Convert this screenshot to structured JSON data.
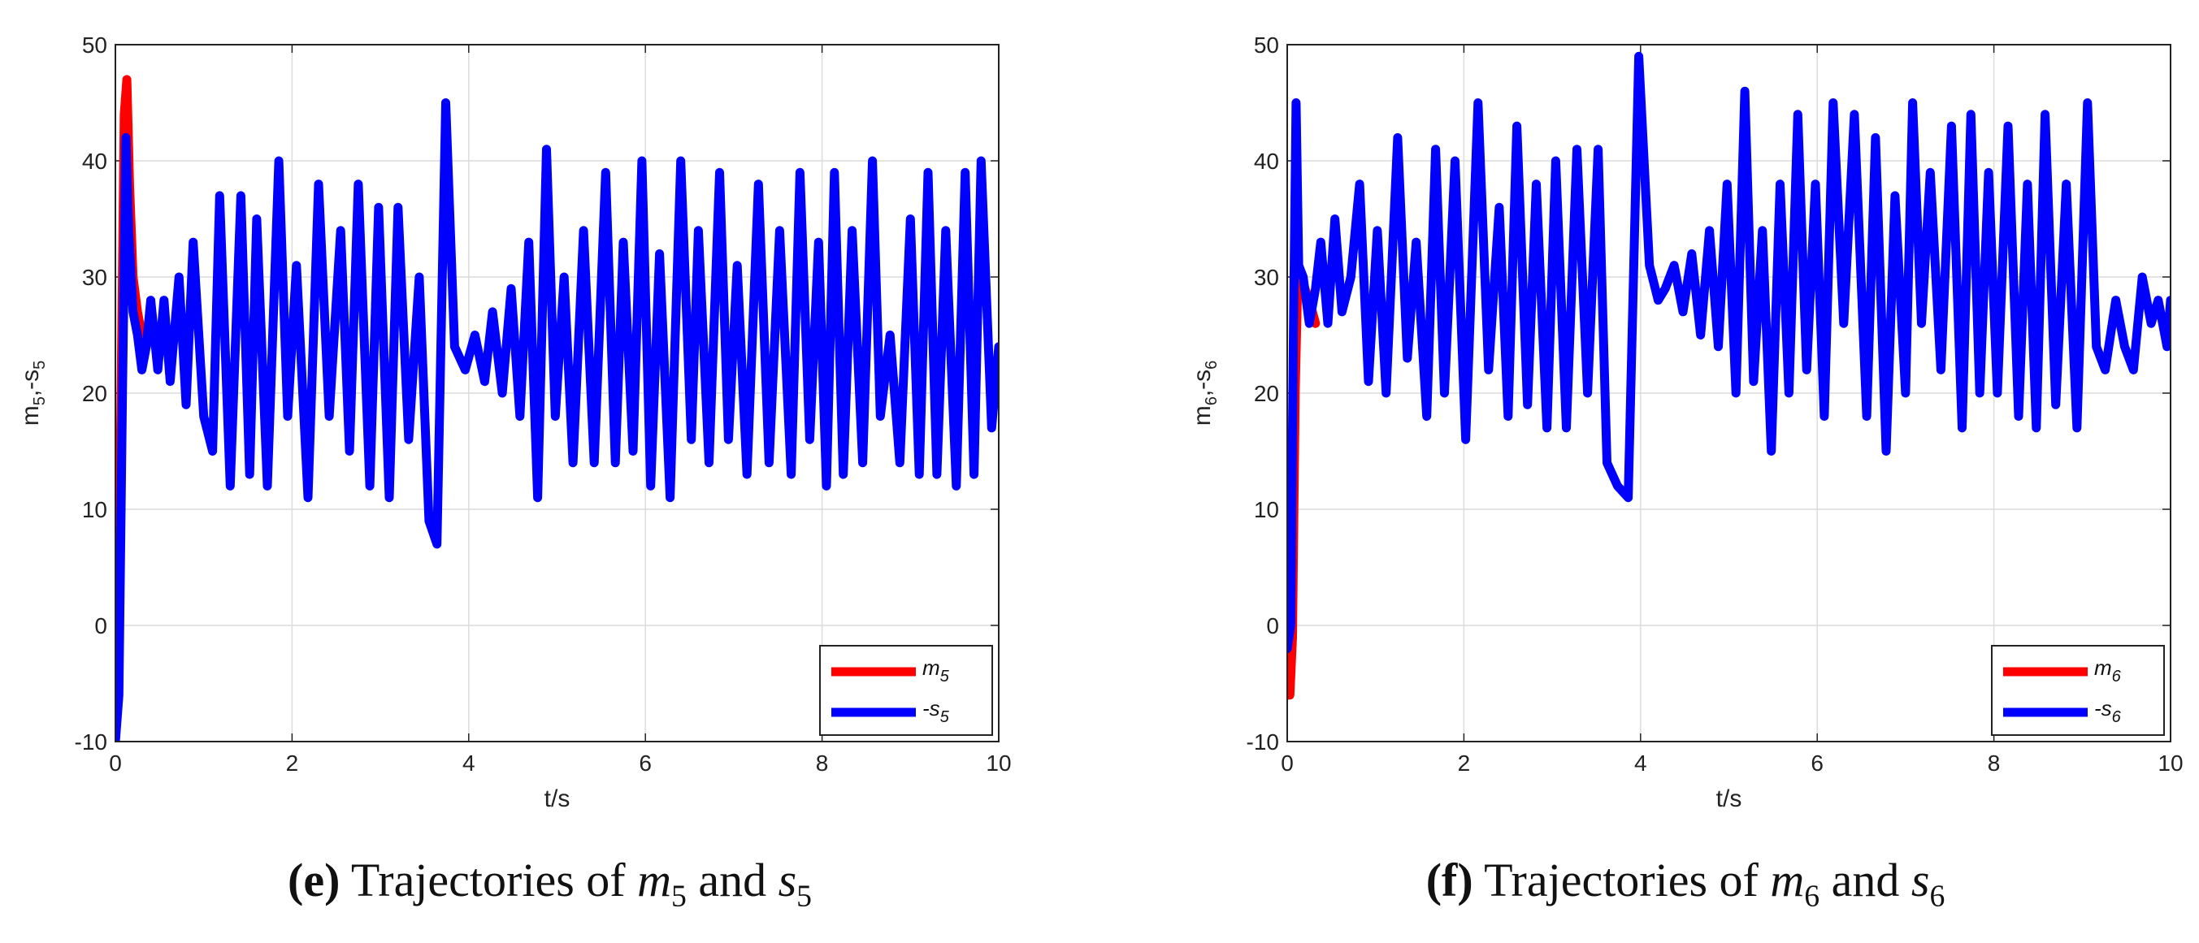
{
  "chart_data": [
    {
      "type": "line",
      "panel_tag": "(e)",
      "caption": {
        "tag_letter": "e",
        "text_prefix": "Trajectories of",
        "var1": "m",
        "var1_sub": "5",
        "conjunction": "and",
        "var2": "s",
        "var2_sub": "5"
      },
      "xlabel": "t/s",
      "ylabel": "m5,-s5",
      "xlim": [
        0,
        10
      ],
      "ylim": [
        -10,
        50
      ],
      "xticks": [
        "0",
        "2",
        "4",
        "6",
        "8",
        "10"
      ],
      "yticks": [
        "-10",
        "0",
        "10",
        "20",
        "30",
        "40",
        "50"
      ],
      "grid": true,
      "legend_position": "bottom-right",
      "series": [
        {
          "name": "m5",
          "label_base": "m",
          "label_sub": "5",
          "color": "#ff0000",
          "x": [
            0,
            0.02,
            0.05,
            0.1,
            0.13,
            0.16,
            0.2,
            0.25,
            0.3,
            0.35
          ],
          "values": [
            5,
            4.5,
            10,
            44,
            47,
            38,
            30,
            27,
            25,
            24
          ]
        },
        {
          "name": "-s5",
          "label_base": "-s",
          "label_sub": "5",
          "color": "#0000ff",
          "x": [
            0,
            0.04,
            0.08,
            0.12,
            0.15,
            0.2,
            0.25,
            0.3,
            0.35,
            0.4,
            0.48,
            0.55,
            0.62,
            0.72,
            0.8,
            0.88,
            1.0,
            1.1,
            1.18,
            1.3,
            1.42,
            1.52,
            1.6,
            1.72,
            1.85,
            1.95,
            2.05,
            2.18,
            2.3,
            2.42,
            2.55,
            2.65,
            2.75,
            2.88,
            2.98,
            3.1,
            3.2,
            3.32,
            3.44,
            3.55,
            3.64,
            3.74,
            3.84,
            3.96,
            4.07,
            4.18,
            4.27,
            4.38,
            4.48,
            4.58,
            4.68,
            4.78,
            4.88,
            4.98,
            5.08,
            5.18,
            5.3,
            5.42,
            5.55,
            5.66,
            5.75,
            5.86,
            5.96,
            6.06,
            6.16,
            6.28,
            6.4,
            6.52,
            6.6,
            6.72,
            6.84,
            6.94,
            7.04,
            7.15,
            7.28,
            7.4,
            7.52,
            7.65,
            7.75,
            7.86,
            7.96,
            8.05,
            8.14,
            8.24,
            8.34,
            8.46,
            8.57,
            8.66,
            8.77,
            8.88,
            9.0,
            9.1,
            9.2,
            9.3,
            9.4,
            9.52,
            9.62,
            9.72,
            9.8,
            9.92,
            10.0
          ],
          "values": [
            -10,
            -6,
            20,
            42,
            34,
            27,
            25,
            22,
            24,
            28,
            22,
            28,
            21,
            30,
            19,
            33,
            18,
            15,
            37,
            12,
            37,
            13,
            35,
            12,
            40,
            18,
            31,
            11,
            38,
            18,
            34,
            15,
            38,
            12,
            36,
            11,
            36,
            16,
            30,
            9,
            7,
            45,
            24,
            22,
            25,
            21,
            27,
            20,
            29,
            18,
            33,
            11,
            41,
            18,
            30,
            14,
            34,
            14,
            39,
            14,
            33,
            15,
            40,
            12,
            32,
            11,
            40,
            16,
            34,
            14,
            39,
            16,
            31,
            13,
            38,
            14,
            34,
            13,
            39,
            16,
            33,
            12,
            39,
            13,
            34,
            14,
            40,
            18,
            25,
            14,
            35,
            13,
            39,
            13,
            34,
            12,
            39,
            13,
            40,
            17,
            24
          ]
        }
      ]
    },
    {
      "type": "line",
      "panel_tag": "(f)",
      "caption": {
        "tag_letter": "f",
        "text_prefix": "Trajectories of",
        "var1": "m",
        "var1_sub": "6",
        "conjunction": "and",
        "var2": "s",
        "var2_sub": "6"
      },
      "xlabel": "t/s",
      "ylabel": "m6,-s6",
      "xlim": [
        0,
        10
      ],
      "ylim": [
        -10,
        50
      ],
      "xticks": [
        "0",
        "2",
        "4",
        "6",
        "8",
        "10"
      ],
      "yticks": [
        "-10",
        "0",
        "10",
        "20",
        "30",
        "40",
        "50"
      ],
      "grid": true,
      "legend_position": "bottom-right",
      "series": [
        {
          "name": "m6",
          "label_base": "m",
          "label_sub": "6",
          "color": "#ff0000",
          "x": [
            0,
            0.03,
            0.06,
            0.09,
            0.12,
            0.16,
            0.2,
            0.25,
            0.32
          ],
          "values": [
            -6,
            -6,
            -1,
            20,
            30,
            30,
            29,
            28,
            26
          ]
        },
        {
          "name": "-s6",
          "label_base": "-s",
          "label_sub": "6",
          "color": "#0000ff",
          "x": [
            0,
            0.04,
            0.07,
            0.1,
            0.13,
            0.18,
            0.25,
            0.32,
            0.38,
            0.46,
            0.54,
            0.62,
            0.72,
            0.82,
            0.92,
            1.02,
            1.12,
            1.25,
            1.36,
            1.46,
            1.58,
            1.68,
            1.78,
            1.9,
            2.02,
            2.16,
            2.28,
            2.4,
            2.5,
            2.6,
            2.72,
            2.82,
            2.94,
            3.04,
            3.16,
            3.28,
            3.4,
            3.52,
            3.62,
            3.74,
            3.86,
            3.98,
            4.1,
            4.2,
            4.28,
            4.38,
            4.48,
            4.58,
            4.68,
            4.78,
            4.88,
            4.98,
            5.08,
            5.18,
            5.28,
            5.38,
            5.48,
            5.58,
            5.68,
            5.78,
            5.88,
            5.98,
            6.08,
            6.18,
            6.3,
            6.42,
            6.56,
            6.66,
            6.78,
            6.88,
            7.0,
            7.08,
            7.18,
            7.28,
            7.4,
            7.52,
            7.64,
            7.74,
            7.84,
            7.94,
            8.04,
            8.16,
            8.28,
            8.38,
            8.48,
            8.58,
            8.7,
            8.82,
            8.94,
            9.06,
            9.16,
            9.26,
            9.38,
            9.48,
            9.58,
            9.68,
            9.78,
            9.86,
            9.96,
            10.0
          ],
          "values": [
            -2,
            0,
            25,
            45,
            31,
            30,
            26,
            29,
            33,
            26,
            35,
            27,
            30,
            38,
            21,
            34,
            20,
            42,
            23,
            33,
            18,
            41,
            20,
            40,
            16,
            45,
            22,
            36,
            18,
            43,
            19,
            38,
            17,
            40,
            17,
            41,
            20,
            41,
            14,
            12,
            11,
            49,
            31,
            28,
            29,
            31,
            27,
            32,
            25,
            34,
            24,
            38,
            20,
            46,
            21,
            34,
            15,
            38,
            20,
            44,
            22,
            38,
            18,
            45,
            26,
            44,
            18,
            42,
            15,
            37,
            20,
            45,
            26,
            39,
            22,
            43,
            17,
            44,
            20,
            39,
            20,
            43,
            18,
            38,
            17,
            44,
            19,
            38,
            17,
            45,
            24,
            22,
            28,
            24,
            22,
            30,
            26,
            28,
            24,
            28
          ]
        }
      ]
    }
  ]
}
